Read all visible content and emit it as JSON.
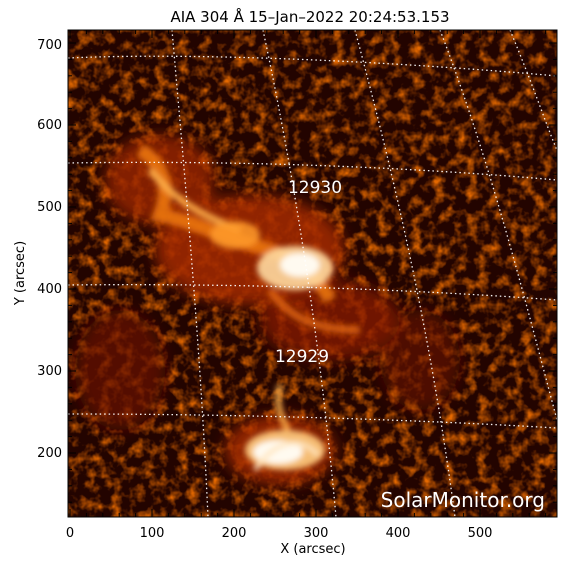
{
  "title": "AIA 304 Å 15–Jan–2022 20:24:53.153",
  "xlabel": "X (arcsec)",
  "ylabel": "Y (arcsec)",
  "x_ticks": [
    "0",
    "100",
    "200",
    "300",
    "400",
    "500"
  ],
  "y_ticks": [
    "200",
    "300",
    "400",
    "500",
    "600",
    "700"
  ],
  "regions": [
    {
      "number": "12930"
    },
    {
      "number": "12929"
    }
  ],
  "watermark": "SolarMonitor.org",
  "colors": {
    "background": "#ffffff",
    "image_dark": "#000000",
    "image_mid": "#7a1500",
    "image_bright": "#ff8a1a",
    "image_peak": "#fff6e6",
    "grid": "#ffffff",
    "text": "#000000"
  }
}
